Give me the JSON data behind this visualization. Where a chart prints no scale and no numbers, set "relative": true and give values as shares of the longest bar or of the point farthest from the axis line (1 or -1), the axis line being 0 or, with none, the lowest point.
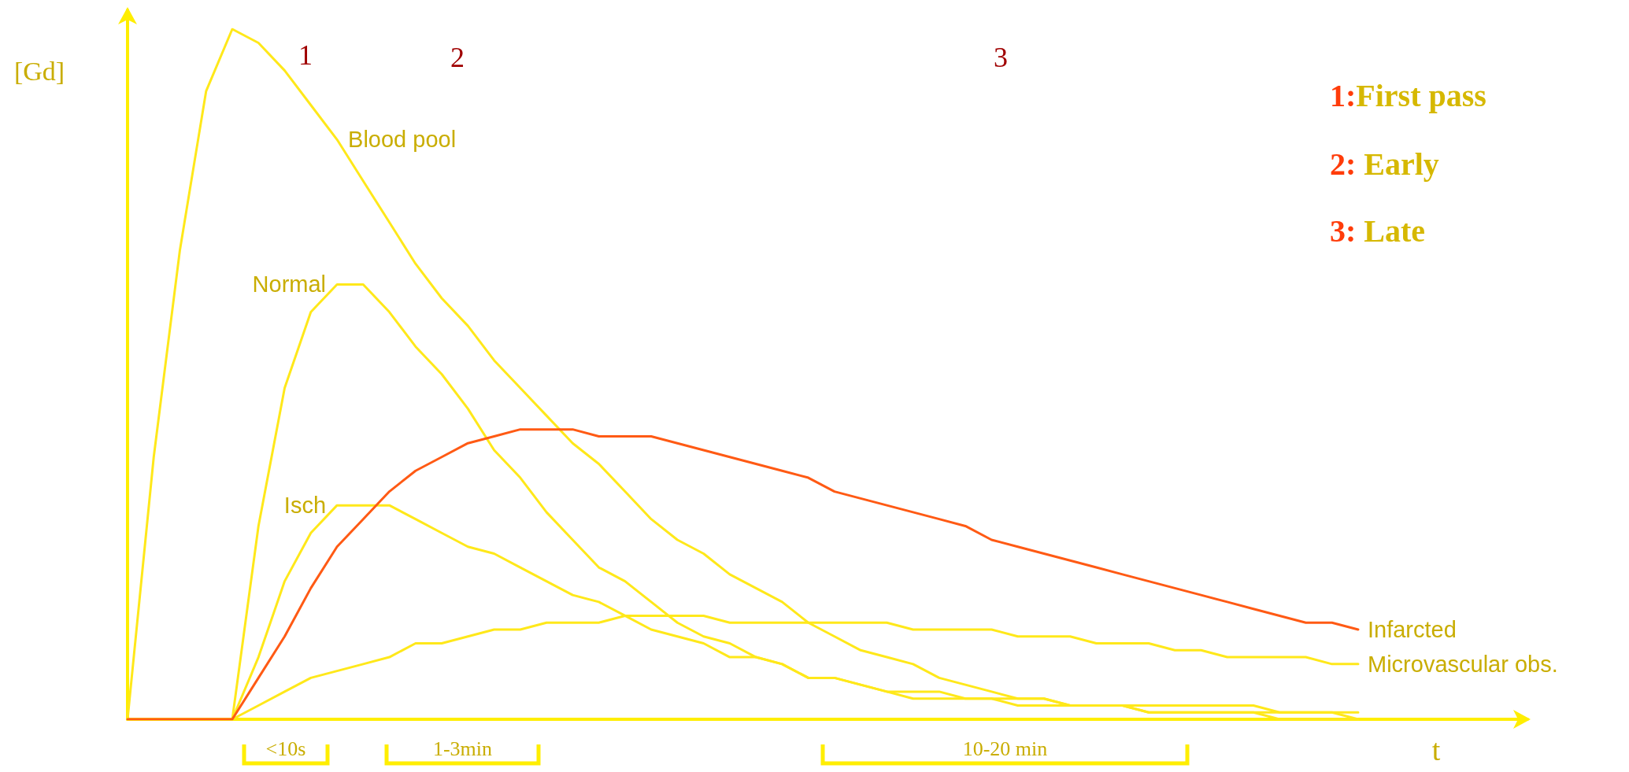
{
  "chart_data": {
    "type": "line",
    "relative": true,
    "ylabel": "[Gd]",
    "xlabel": "t",
    "grid": false,
    "legend": false,
    "marker": "none",
    "line_style": "solid",
    "categories": [
      null,
      null,
      null,
      null,
      null,
      null,
      null,
      null,
      null,
      null,
      null,
      null,
      null,
      null,
      null,
      null,
      null,
      null,
      null,
      null,
      null,
      null,
      null,
      null,
      null,
      null,
      null,
      null,
      null,
      null,
      null,
      null,
      null,
      null,
      null,
      null,
      null,
      null,
      null,
      null,
      null,
      null,
      null,
      null,
      null,
      null,
      null,
      null
    ],
    "series": [
      {
        "name": "Blood pool",
        "color": "#ffe81a",
        "values": [
          0,
          0.38,
          0.68,
          0.91,
          1.0,
          0.98,
          0.94,
          0.89,
          0.84,
          0.78,
          0.72,
          0.66,
          0.61,
          0.57,
          0.52,
          0.48,
          0.44,
          0.4,
          0.37,
          0.33,
          0.29,
          0.26,
          0.24,
          0.21,
          0.19,
          0.17,
          0.14,
          0.12,
          0.1,
          0.09,
          0.08,
          0.06,
          0.05,
          0.04,
          0.03,
          0.03,
          0.02,
          0.02,
          0.02,
          0.01,
          0.01,
          0.01,
          0.01,
          0.01,
          0,
          0,
          0,
          0
        ]
      },
      {
        "name": "Normal",
        "color": "#ffe81a",
        "values": [
          0,
          0,
          0,
          0,
          0,
          0.28,
          0.48,
          0.59,
          0.63,
          0.63,
          0.59,
          0.54,
          0.5,
          0.45,
          0.39,
          0.35,
          0.3,
          0.26,
          0.22,
          0.2,
          0.17,
          0.14,
          0.12,
          0.11,
          0.09,
          0.08,
          0.06,
          0.06,
          0.05,
          0.04,
          0.03,
          0.03,
          0.03,
          0.03,
          0.02,
          0.02,
          0.02,
          0.02,
          0.02,
          0.01,
          0.01,
          0.01,
          0.01,
          0.01,
          0.01,
          0.01,
          0.01,
          0
        ]
      },
      {
        "name": "Isch",
        "color": "#ffe81a",
        "values": [
          0,
          0,
          0,
          0,
          0,
          0.09,
          0.2,
          0.27,
          0.31,
          0.31,
          0.31,
          0.29,
          0.27,
          0.25,
          0.24,
          0.22,
          0.2,
          0.18,
          0.17,
          0.15,
          0.13,
          0.12,
          0.11,
          0.09,
          0.09,
          0.08,
          0.06,
          0.06,
          0.05,
          0.04,
          0.04,
          0.04,
          0.03,
          0.03,
          0.03,
          0.03,
          0.02,
          0.02,
          0.02,
          0.02,
          0.02,
          0.02,
          0.02,
          0.02,
          0.01,
          0.01,
          0.01,
          0.01
        ]
      },
      {
        "name": "Infarcted",
        "color": "#ff5a14",
        "values": [
          0,
          0,
          0,
          0,
          0,
          0.06,
          0.12,
          0.19,
          0.25,
          0.29,
          0.33,
          0.36,
          0.38,
          0.4,
          0.41,
          0.42,
          0.42,
          0.42,
          0.41,
          0.41,
          0.41,
          0.4,
          0.39,
          0.38,
          0.37,
          0.36,
          0.35,
          0.33,
          0.32,
          0.31,
          0.3,
          0.29,
          0.28,
          0.26,
          0.25,
          0.24,
          0.23,
          0.22,
          0.21,
          0.2,
          0.19,
          0.18,
          0.17,
          0.16,
          0.15,
          0.14,
          0.14,
          0.13
        ]
      },
      {
        "name": "Microvascular obs.",
        "color": "#ffe81a",
        "values": [
          0,
          0,
          0,
          0,
          0,
          0.02,
          0.04,
          0.06,
          0.07,
          0.08,
          0.09,
          0.11,
          0.11,
          0.12,
          0.13,
          0.13,
          0.14,
          0.14,
          0.14,
          0.15,
          0.15,
          0.15,
          0.15,
          0.14,
          0.14,
          0.14,
          0.14,
          0.14,
          0.14,
          0.14,
          0.13,
          0.13,
          0.13,
          0.13,
          0.12,
          0.12,
          0.12,
          0.11,
          0.11,
          0.11,
          0.1,
          0.1,
          0.09,
          0.09,
          0.09,
          0.09,
          0.08,
          0.08
        ]
      }
    ],
    "annotations": [
      "1",
      "2",
      "3",
      "1:First pass",
      "2: Early",
      "3: Late",
      "<10s",
      "1-3min",
      "10-20 min"
    ]
  }
}
